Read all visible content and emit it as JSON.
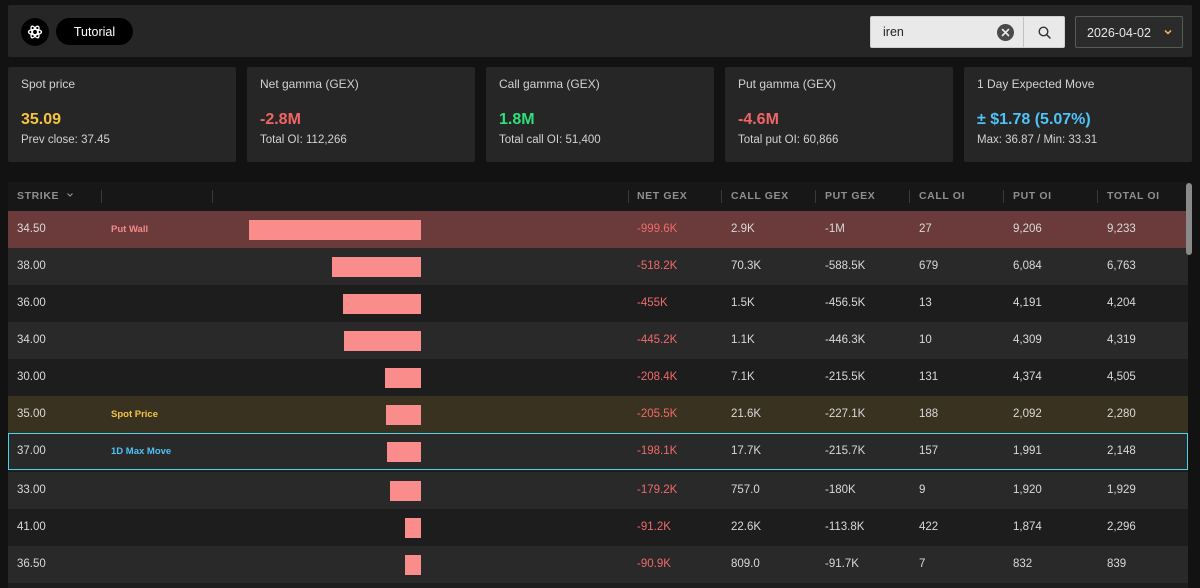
{
  "header": {
    "tutorial_label": "Tutorial",
    "search": {
      "value": "iren",
      "placeholder": ""
    },
    "date": "2026-04-02"
  },
  "cards": [
    {
      "label": "Spot price",
      "value": "35.09",
      "sub": "Prev close: 37.45",
      "color": "#f5c542"
    },
    {
      "label": "Net gamma (GEX)",
      "value": "-2.8M",
      "sub": "Total OI: 112,266",
      "color": "#f06666"
    },
    {
      "label": "Call gamma (GEX)",
      "value": "1.8M",
      "sub": "Total call OI: 51,400",
      "color": "#2ee07a"
    },
    {
      "label": "Put gamma (GEX)",
      "value": "-4.6M",
      "sub": "Total put OI: 60,866",
      "color": "#f06666"
    },
    {
      "label": "1 Day Expected Move",
      "value": "± $1.78 (5.07%)",
      "sub": "Max: 36.87 / Min: 33.31",
      "color": "#4fc3f7"
    }
  ],
  "table": {
    "columns": {
      "strike": "STRIKE",
      "net_gex": "NET GEX",
      "call_gex": "CALL GEX",
      "put_gex": "PUT GEX",
      "call_oi": "CALL OI",
      "put_oi": "PUT OI",
      "total_oi": "TOTAL OI"
    },
    "rows": [
      {
        "strike": "34.50",
        "tag": "Put Wall",
        "tag_color": "#f48a8a",
        "net_gex": "-999.6K",
        "net_gex_value": -999.6,
        "call_gex": "2.9K",
        "put_gex": "-1M",
        "call_oi": "27",
        "put_oi": "9,206",
        "total_oi": "9,233",
        "kind": "putwall"
      },
      {
        "strike": "38.00",
        "tag": "",
        "tag_color": "",
        "net_gex": "-518.2K",
        "net_gex_value": -518.2,
        "call_gex": "70.3K",
        "put_gex": "-588.5K",
        "call_oi": "679",
        "put_oi": "6,084",
        "total_oi": "6,763",
        "kind": ""
      },
      {
        "strike": "36.00",
        "tag": "",
        "tag_color": "",
        "net_gex": "-455K",
        "net_gex_value": -455,
        "call_gex": "1.5K",
        "put_gex": "-456.5K",
        "call_oi": "13",
        "put_oi": "4,191",
        "total_oi": "4,204",
        "kind": ""
      },
      {
        "strike": "34.00",
        "tag": "",
        "tag_color": "",
        "net_gex": "-445.2K",
        "net_gex_value": -445.2,
        "call_gex": "1.1K",
        "put_gex": "-446.3K",
        "call_oi": "10",
        "put_oi": "4,309",
        "total_oi": "4,319",
        "kind": ""
      },
      {
        "strike": "30.00",
        "tag": "",
        "tag_color": "",
        "net_gex": "-208.4K",
        "net_gex_value": -208.4,
        "call_gex": "7.1K",
        "put_gex": "-215.5K",
        "call_oi": "131",
        "put_oi": "4,374",
        "total_oi": "4,505",
        "kind": ""
      },
      {
        "strike": "35.00",
        "tag": "Spot Price",
        "tag_color": "#f5c542",
        "net_gex": "-205.5K",
        "net_gex_value": -205.5,
        "call_gex": "21.6K",
        "put_gex": "-227.1K",
        "call_oi": "188",
        "put_oi": "2,092",
        "total_oi": "2,280",
        "kind": "spot"
      },
      {
        "strike": "37.00",
        "tag": "1D Max Move",
        "tag_color": "#4fc3f7",
        "net_gex": "-198.1K",
        "net_gex_value": -198.1,
        "call_gex": "17.7K",
        "put_gex": "-215.7K",
        "call_oi": "157",
        "put_oi": "1,991",
        "total_oi": "2,148",
        "kind": "maxmove"
      },
      {
        "strike": "33.00",
        "tag": "",
        "tag_color": "",
        "net_gex": "-179.2K",
        "net_gex_value": -179.2,
        "call_gex": "757.0",
        "put_gex": "-180K",
        "call_oi": "9",
        "put_oi": "1,920",
        "total_oi": "1,929",
        "kind": ""
      },
      {
        "strike": "41.00",
        "tag": "",
        "tag_color": "",
        "net_gex": "-91.2K",
        "net_gex_value": -91.2,
        "call_gex": "22.6K",
        "put_gex": "-113.8K",
        "call_oi": "422",
        "put_oi": "1,874",
        "total_oi": "2,296",
        "kind": ""
      },
      {
        "strike": "36.50",
        "tag": "",
        "tag_color": "",
        "net_gex": "-90.9K",
        "net_gex_value": -90.9,
        "call_gex": "809.0",
        "put_gex": "-91.7K",
        "call_oi": "7",
        "put_oi": "832",
        "total_oi": "839",
        "kind": ""
      }
    ]
  },
  "colors": {
    "bar": "#fb8c8c",
    "negative": "#ef6a6a",
    "putwall_row": "#6b3a3a",
    "spot_row": "#3a3220",
    "maxmove_border": "#4fd3e8"
  }
}
